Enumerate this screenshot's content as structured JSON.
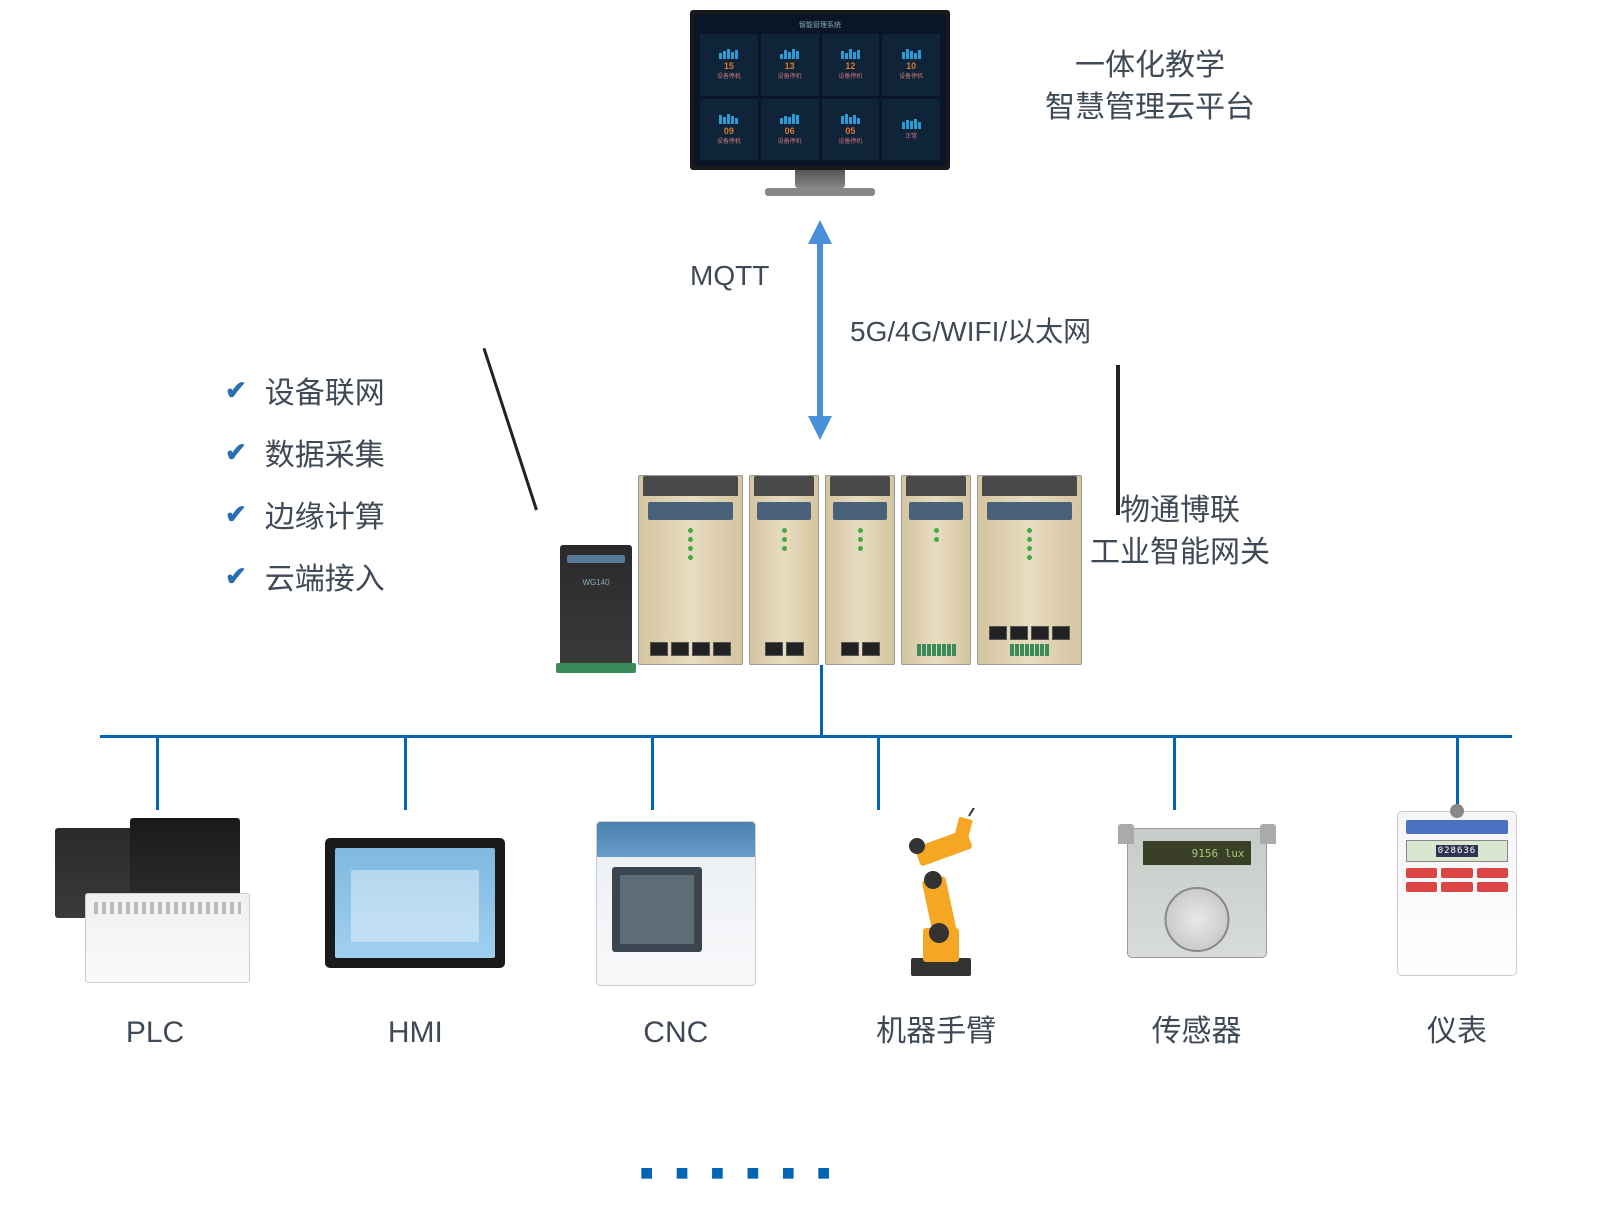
{
  "cloud": {
    "title_line1": "一体化教学",
    "title_line2": "智慧管理云平台",
    "monitor_header": "智能管理系统",
    "tiles": [
      {
        "num": "15",
        "txt": "设备停机",
        "bars": [
          6,
          8,
          10,
          7,
          9
        ]
      },
      {
        "num": "13",
        "txt": "设备停机",
        "bars": [
          5,
          9,
          7,
          10,
          8
        ]
      },
      {
        "num": "12",
        "txt": "设备停机",
        "bars": [
          8,
          6,
          10,
          7,
          9
        ]
      },
      {
        "num": "10",
        "txt": "设备停机",
        "bars": [
          7,
          10,
          8,
          6,
          9
        ]
      },
      {
        "num": "09",
        "txt": "设备停机",
        "bars": [
          9,
          7,
          10,
          8,
          6
        ]
      },
      {
        "num": "06",
        "txt": "设备停机",
        "bars": [
          6,
          8,
          7,
          10,
          9
        ]
      },
      {
        "num": "05",
        "txt": "设备停机",
        "bars": [
          8,
          10,
          7,
          9,
          6
        ]
      },
      {
        "num": "",
        "txt": "正常",
        "bars": [
          7,
          9,
          8,
          10,
          7
        ]
      }
    ]
  },
  "link": {
    "mqtt": "MQTT",
    "net": "5G/4G/WIFI/以太网",
    "arrow_color": "#4a90d9"
  },
  "features": {
    "check_color": "#2a6fb5",
    "text_color": "#3f4a56",
    "items": [
      "设备联网",
      "数据采集",
      "边缘计算",
      "云端接入"
    ]
  },
  "gateway": {
    "label_line1": "物通博联",
    "label_line2": "工业智能网关"
  },
  "bus": {
    "color": "#0066b3",
    "drops_pct": [
      4,
      21.5,
      39,
      55,
      76,
      96
    ]
  },
  "devices": [
    {
      "id": "plc",
      "label": "PLC"
    },
    {
      "id": "hmi",
      "label": "HMI"
    },
    {
      "id": "cnc",
      "label": "CNC"
    },
    {
      "id": "robot",
      "label": "机器手臂"
    },
    {
      "id": "sensor",
      "label": "传感器",
      "display": "9156 lux"
    },
    {
      "id": "meter",
      "label": "仪表",
      "display": "028636"
    }
  ],
  "dots": "■ ■ ■ ■ ■ ■"
}
